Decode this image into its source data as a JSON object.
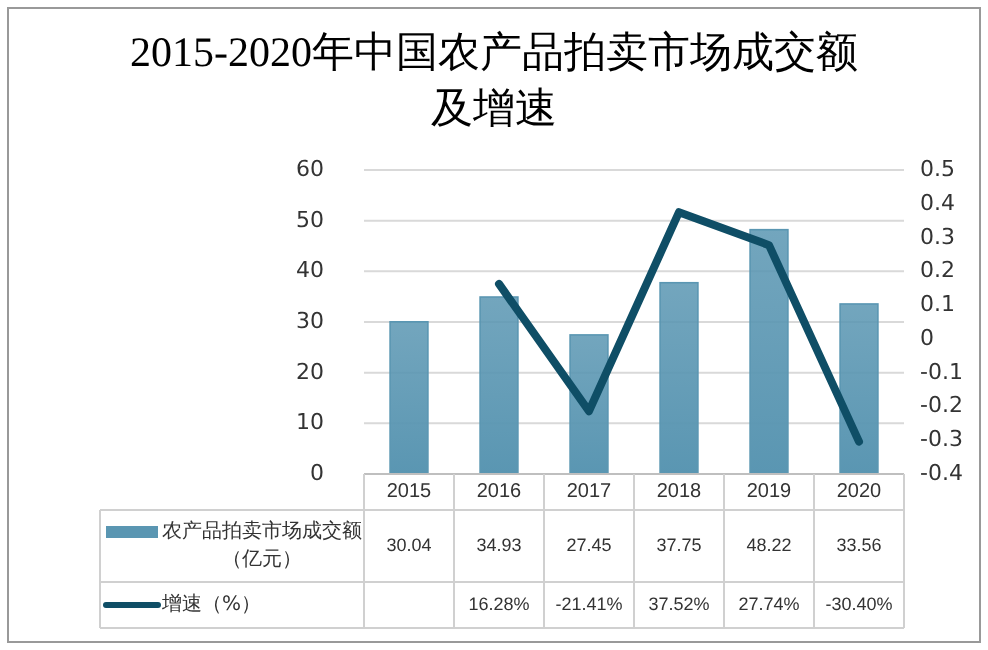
{
  "chart_data": {
    "type": "bar",
    "title": "2015-2020年中国农产品拍卖市场成交额及增速",
    "categories": [
      "2015",
      "2016",
      "2017",
      "2018",
      "2019",
      "2020"
    ],
    "series": [
      {
        "name": "农产品拍卖市场成交额（亿元）",
        "color": "#5a96b2",
        "values": [
          30.04,
          34.93,
          27.45,
          37.75,
          48.22,
          33.56
        ],
        "value_labels": [
          "30.04",
          "34.93",
          "27.45",
          "37.75",
          "48.22",
          "33.56"
        ]
      },
      {
        "name": "增速（%）",
        "type": "line",
        "axis": "y2",
        "color": "#0f4e66",
        "values": [
          null,
          0.1628,
          -0.2141,
          0.3752,
          0.2774,
          -0.304
        ],
        "value_labels": [
          null,
          "16.28%",
          "-21.41%",
          "37.52%",
          "27.74%",
          "-30.40%"
        ]
      }
    ],
    "ylim": [
      0,
      60
    ],
    "yticks": [
      0,
      10,
      20,
      30,
      40,
      50,
      60
    ],
    "y2lim": [
      -0.4,
      0.5
    ],
    "y2ticks": [
      -0.4,
      -0.3,
      -0.2,
      -0.1,
      0,
      0.1,
      0.2,
      0.3,
      0.4,
      0.5
    ],
    "grid": "y",
    "legend": "bottom"
  }
}
